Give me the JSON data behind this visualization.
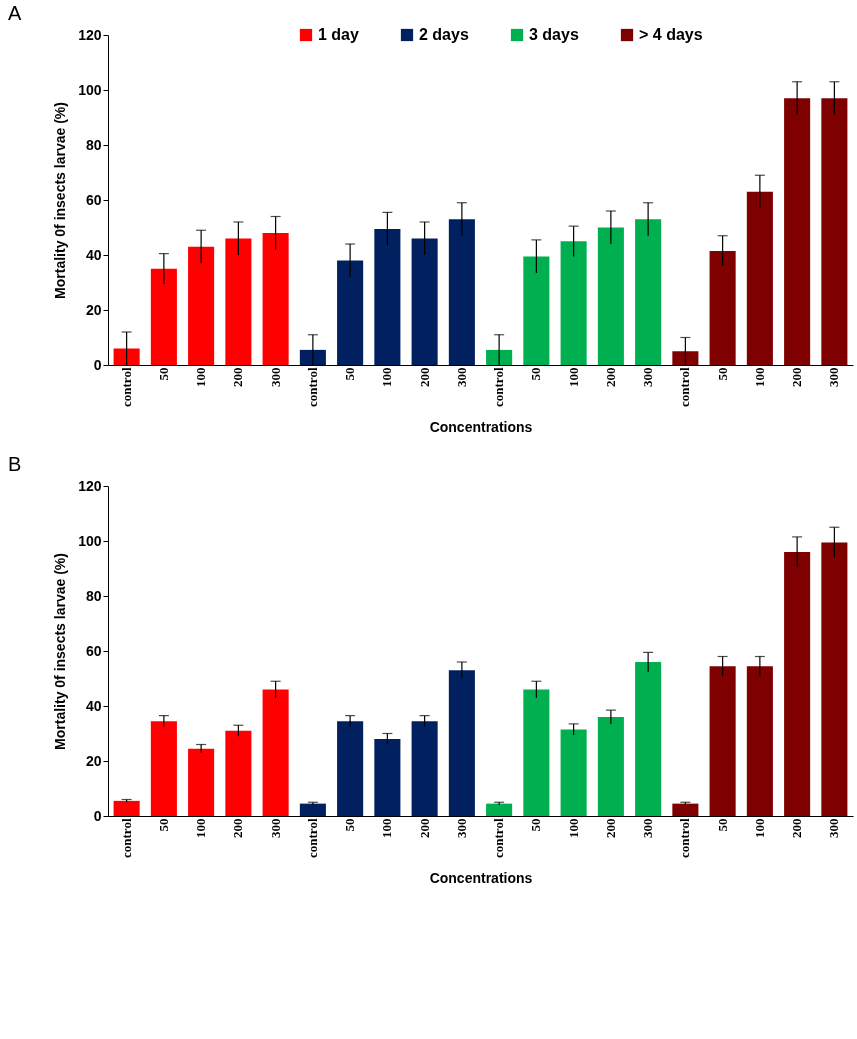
{
  "chart_data": [
    {
      "type": "bar",
      "title": "A",
      "xlabel": "Concentrations",
      "ylabel": "Mortality 0f insects larvae (%)",
      "categories": [
        "control",
        "50",
        "100",
        "200",
        "300",
        "control",
        "50",
        "100",
        "200",
        "300",
        "control",
        "50",
        "100",
        "200",
        "300",
        "control",
        "50",
        "100",
        "200",
        "300"
      ],
      "series": [
        {
          "name": "1 day",
          "color": "#ff0000",
          "values": [
            6,
            35,
            43,
            46,
            48,
            null,
            null,
            null,
            null,
            null,
            null,
            null,
            null,
            null,
            null,
            null,
            null,
            null,
            null,
            null
          ],
          "errors": [
            6,
            5.5,
            6,
            6,
            6,
            null,
            null,
            null,
            null,
            null,
            null,
            null,
            null,
            null,
            null,
            null,
            null,
            null,
            null,
            null
          ]
        },
        {
          "name": "2 days",
          "color": "#002060",
          "values": [
            null,
            null,
            null,
            null,
            null,
            5.5,
            38,
            49.5,
            46,
            53,
            null,
            null,
            null,
            null,
            null,
            null,
            null,
            null,
            null,
            null
          ],
          "errors": [
            null,
            null,
            null,
            null,
            null,
            5.5,
            6,
            6,
            6,
            6,
            null,
            null,
            null,
            null,
            null,
            null,
            null,
            null,
            null,
            null
          ]
        },
        {
          "name": "3 days",
          "color": "#00b050",
          "values": [
            null,
            null,
            null,
            null,
            null,
            null,
            null,
            null,
            null,
            null,
            5.5,
            39.5,
            45,
            50,
            53,
            null,
            null,
            null,
            null,
            null
          ],
          "errors": [
            null,
            null,
            null,
            null,
            null,
            null,
            null,
            null,
            null,
            null,
            5.5,
            6,
            5.5,
            6,
            6,
            null,
            null,
            null,
            null,
            null
          ]
        },
        {
          "name": "> 4 days",
          "color": "#7f0000",
          "values": [
            null,
            null,
            null,
            null,
            null,
            null,
            null,
            null,
            null,
            null,
            null,
            null,
            null,
            null,
            null,
            5,
            41.5,
            63,
            97,
            97
          ],
          "errors": [
            null,
            null,
            null,
            null,
            null,
            null,
            null,
            null,
            null,
            null,
            null,
            null,
            null,
            null,
            null,
            5,
            5.5,
            6,
            6,
            6
          ]
        }
      ],
      "ylim": [
        0,
        120
      ],
      "yticks": [
        0,
        20,
        40,
        60,
        80,
        100,
        120
      ],
      "legend": "top"
    },
    {
      "type": "bar",
      "title": "B",
      "xlabel": "Concentrations",
      "ylabel": "Mortality 0f insects larvae (%)",
      "categories": [
        "control",
        "50",
        "100",
        "200",
        "300",
        "control",
        "50",
        "100",
        "200",
        "300",
        "control",
        "50",
        "100",
        "200",
        "300",
        "control",
        "50",
        "100",
        "200",
        "300"
      ],
      "series": [
        {
          "name": "1 day",
          "color": "#ff0000",
          "values": [
            5.5,
            34.5,
            24.5,
            31,
            46,
            null,
            null,
            null,
            null,
            null,
            null,
            null,
            null,
            null,
            null,
            null,
            null,
            null,
            null,
            null
          ],
          "errors": [
            0.5,
            2,
            1.5,
            2,
            3,
            null,
            null,
            null,
            null,
            null,
            null,
            null,
            null,
            null,
            null,
            null,
            null,
            null,
            null,
            null
          ]
        },
        {
          "name": "2 days",
          "color": "#002060",
          "values": [
            null,
            null,
            null,
            null,
            null,
            4.5,
            34.5,
            28,
            34.5,
            53,
            null,
            null,
            null,
            null,
            null,
            null,
            null,
            null,
            null,
            null
          ],
          "errors": [
            null,
            null,
            null,
            null,
            null,
            0.5,
            2,
            2,
            2,
            3,
            null,
            null,
            null,
            null,
            null,
            null,
            null,
            null,
            null,
            null
          ]
        },
        {
          "name": "3 days",
          "color": "#00b050",
          "values": [
            null,
            null,
            null,
            null,
            null,
            null,
            null,
            null,
            null,
            null,
            4.5,
            46,
            31.5,
            36,
            56,
            null,
            null,
            null,
            null,
            null
          ],
          "errors": [
            null,
            null,
            null,
            null,
            null,
            null,
            null,
            null,
            null,
            null,
            0.5,
            3,
            2,
            2.5,
            3.5,
            null,
            null,
            null,
            null,
            null
          ]
        },
        {
          "name": "> 4 days",
          "color": "#7f0000",
          "values": [
            null,
            null,
            null,
            null,
            null,
            null,
            null,
            null,
            null,
            null,
            null,
            null,
            null,
            null,
            null,
            4.5,
            54.5,
            54.5,
            96,
            99.5
          ],
          "errors": [
            null,
            null,
            null,
            null,
            null,
            null,
            null,
            null,
            null,
            null,
            null,
            null,
            null,
            null,
            null,
            0.5,
            3.5,
            3.5,
            5.5,
            5.5
          ]
        }
      ],
      "ylim": [
        0,
        120
      ],
      "yticks": [
        0,
        20,
        40,
        60,
        80,
        100,
        120
      ],
      "legend": "top"
    }
  ]
}
